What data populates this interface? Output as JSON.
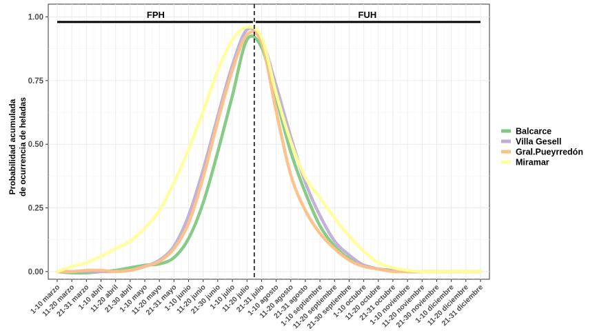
{
  "chart_data": {
    "type": "line",
    "title": "",
    "xlabel": "",
    "ylabel_lines": [
      "Probabilidad acumulada",
      "de ocurrencia de heladas"
    ],
    "categories": [
      "1-10 marzo",
      "11-20 marzo",
      "21-31 marzo",
      "1-10 abril",
      "11-20 abril",
      "21-30 abril",
      "1-10 mayo",
      "11-20 mayo",
      "21-31 mayo",
      "1-10 junio",
      "11-20 junio",
      "21-30 junio",
      "1-10 julio",
      "11-20 julio",
      "21-31 julio",
      "1-10 agosto",
      "11-20 agosto",
      "21-31 agosto",
      "1-10 septiembre",
      "11-20 septiembre",
      "21-30 septiembre",
      "1-10 octubre",
      "11-20 octubre",
      "21-31 octubre",
      "1-10 noviembre",
      "11-20 noviembre",
      "21-30 noviembre",
      "1-10 diciembre",
      "11-20 diciembre",
      "21-31 diciembre"
    ],
    "yticks": [
      "0.00",
      "0.25",
      "0.50",
      "0.75",
      "1.00"
    ],
    "ylim": [
      -0.03,
      1.05
    ],
    "grid": true,
    "legend_position": "right",
    "split_index": 13.5,
    "annotations": {
      "left": "FPH",
      "right": "FUH"
    },
    "series": [
      {
        "name": "Balcarce",
        "color": "#7fc97f",
        "values": [
          0.0,
          -0.005,
          -0.005,
          0.0,
          0.005,
          0.015,
          0.025,
          0.03,
          0.055,
          0.13,
          0.27,
          0.47,
          0.69,
          0.91,
          0.88,
          0.68,
          0.47,
          0.31,
          0.18,
          0.1,
          0.05,
          0.025,
          0.01,
          0.005,
          0.0,
          0.0,
          0.0,
          0.0,
          0.0,
          0.0
        ]
      },
      {
        "name": "Villa Gesell",
        "color": "#beaed4",
        "values": [
          0.0,
          0.0,
          0.0,
          0.0,
          0.0,
          0.005,
          0.02,
          0.045,
          0.1,
          0.22,
          0.4,
          0.61,
          0.81,
          0.95,
          0.91,
          0.73,
          0.53,
          0.35,
          0.22,
          0.12,
          0.065,
          0.025,
          0.01,
          0.005,
          0.0,
          0.0,
          0.0,
          0.0,
          0.0,
          0.0
        ]
      },
      {
        "name": "Gral.Pueyrredón",
        "color": "#fdc086",
        "values": [
          0.0,
          0.0,
          0.005,
          0.005,
          0.0,
          0.005,
          0.02,
          0.04,
          0.09,
          0.19,
          0.37,
          0.59,
          0.79,
          0.93,
          0.9,
          0.63,
          0.38,
          0.24,
          0.15,
          0.09,
          0.045,
          0.02,
          0.01,
          0.0,
          0.0,
          0.0,
          0.0,
          0.0,
          0.0,
          0.0
        ]
      },
      {
        "name": "Miramar",
        "color": "#ffff99",
        "values": [
          0.0,
          0.02,
          0.035,
          0.06,
          0.09,
          0.12,
          0.17,
          0.24,
          0.35,
          0.48,
          0.63,
          0.79,
          0.91,
          0.96,
          0.92,
          0.7,
          0.51,
          0.37,
          0.29,
          0.21,
          0.14,
          0.08,
          0.035,
          0.015,
          0.005,
          0.0,
          0.0,
          0.0,
          0.0,
          0.0
        ]
      }
    ]
  }
}
